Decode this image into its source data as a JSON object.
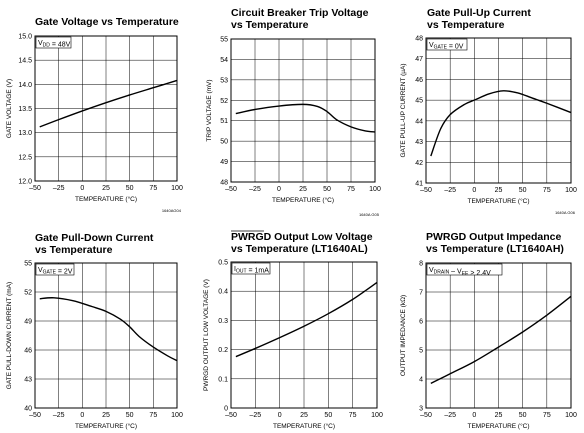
{
  "chart_data": [
    {
      "type": "line",
      "title": [
        "Gate Voltage vs Temperature"
      ],
      "xlabel": "TEMPERATURE (°C)",
      "ylabel": "GATE VOLTAGE (V)",
      "annotation": "V_DD = 48V",
      "code": "1640AG04",
      "xlim": [
        -50,
        100
      ],
      "ylim": [
        12.0,
        15.0
      ],
      "xticks": [
        "–50",
        "–25",
        "0",
        "25",
        "50",
        "75",
        "100"
      ],
      "yticks": [
        "15.0",
        "14.5",
        "14.0",
        "13.5",
        "13.0",
        "12.5",
        "12.0"
      ],
      "series": [
        {
          "x": [
            -45,
            -25,
            0,
            25,
            50,
            75,
            100
          ],
          "y": [
            13.12,
            13.27,
            13.45,
            13.62,
            13.78,
            13.93,
            14.08
          ]
        }
      ]
    },
    {
      "type": "line",
      "title": [
        "Circuit Breaker Trip Voltage",
        "vs Temperature"
      ],
      "xlabel": "TEMPERATURE (°C)",
      "ylabel": "TRIP VOLTAGE (mV)",
      "code": "1640A G05",
      "xlim": [
        -50,
        100
      ],
      "ylim": [
        48,
        55
      ],
      "xticks": [
        "–50",
        "–25",
        "0",
        "25",
        "50",
        "75",
        "100"
      ],
      "yticks": [
        "55",
        "54",
        "53",
        "52",
        "51",
        "50",
        "49",
        "48"
      ],
      "series": [
        {
          "x": [
            -45,
            -25,
            0,
            25,
            40,
            50,
            60,
            75,
            90,
            100
          ],
          "y": [
            51.35,
            51.55,
            51.72,
            51.8,
            51.7,
            51.45,
            51.05,
            50.7,
            50.5,
            50.45
          ]
        }
      ]
    },
    {
      "type": "line",
      "title": [
        "Gate Pull-Up Current",
        "vs Temperature"
      ],
      "xlabel": "TEMPERATURE (°C)",
      "ylabel": "GATE PULL-UP CURRENT (µA)",
      "annotation": "V_GATE = 0V",
      "code": "1640A G06",
      "xlim": [
        -50,
        100
      ],
      "ylim": [
        41,
        48
      ],
      "xticks": [
        "–50",
        "–25",
        "0",
        "25",
        "50",
        "75",
        "100"
      ],
      "yticks": [
        "48",
        "47",
        "46",
        "45",
        "44",
        "43",
        "42",
        "41"
      ],
      "series": [
        {
          "x": [
            -45,
            -35,
            -25,
            -10,
            0,
            15,
            30,
            45,
            60,
            75,
            100
          ],
          "y": [
            42.3,
            43.6,
            44.3,
            44.8,
            45.0,
            45.3,
            45.45,
            45.35,
            45.1,
            44.85,
            44.4
          ]
        }
      ]
    },
    {
      "type": "line",
      "title": [
        "Gate Pull-Down Current",
        "vs Temperature"
      ],
      "xlabel": "TEMPERATURE (°C)",
      "ylabel": "GATE PULL-DOWN CURRENT (mA)",
      "annotation": "V_GATE = 2V",
      "xlim": [
        -50,
        100
      ],
      "ylim": [
        40,
        55
      ],
      "xticks": [
        "–50",
        "–25",
        "0",
        "25",
        "50",
        "75",
        "100"
      ],
      "yticks": [
        "55",
        "52",
        "49",
        "46",
        "43",
        "40"
      ],
      "series": [
        {
          "x": [
            -45,
            -30,
            -10,
            10,
            25,
            40,
            50,
            60,
            75,
            90,
            100
          ],
          "y": [
            51.3,
            51.4,
            51.1,
            50.5,
            50.0,
            49.2,
            48.4,
            47.4,
            46.3,
            45.4,
            44.9
          ]
        }
      ]
    },
    {
      "type": "line",
      "title": [
        "PWRGD Output Low Voltage",
        "vs Temperature (LT1640AL)"
      ],
      "xlabel": "TEMPERATURE (°C)",
      "ylabel": "PWRGD OUTPUT LOW VOLTAGE (V)",
      "annotation": "I_OUT = 1mA",
      "xlim": [
        -50,
        100
      ],
      "ylim": [
        0,
        0.5
      ],
      "xticks": [
        "–50",
        "–25",
        "0",
        "25",
        "50",
        "75",
        "100"
      ],
      "yticks": [
        "0.5",
        "0.4",
        "0.3",
        "0.2",
        "0.1",
        "0"
      ],
      "series": [
        {
          "x": [
            -45,
            -25,
            0,
            25,
            50,
            75,
            100
          ],
          "y": [
            0.176,
            0.204,
            0.241,
            0.28,
            0.323,
            0.372,
            0.43
          ]
        }
      ]
    },
    {
      "type": "line",
      "title": [
        "PWRGD Output Impedance",
        "vs Temperature (LT1640AH)"
      ],
      "xlabel": "TEMPERATURE (°C)",
      "ylabel": "OUTPUT IMPEDANCE (kΩ)",
      "annotation": "V_DRAIN – V_EE > 2.4V",
      "xlim": [
        -50,
        100
      ],
      "ylim": [
        3,
        8
      ],
      "xticks": [
        "–50",
        "–25",
        "0",
        "25",
        "50",
        "75",
        "100"
      ],
      "yticks": [
        "8",
        "7",
        "6",
        "5",
        "4",
        "3"
      ],
      "series": [
        {
          "x": [
            -45,
            -25,
            0,
            25,
            50,
            75,
            100
          ],
          "y": [
            3.85,
            4.18,
            4.6,
            5.1,
            5.62,
            6.2,
            6.85
          ]
        }
      ]
    }
  ]
}
